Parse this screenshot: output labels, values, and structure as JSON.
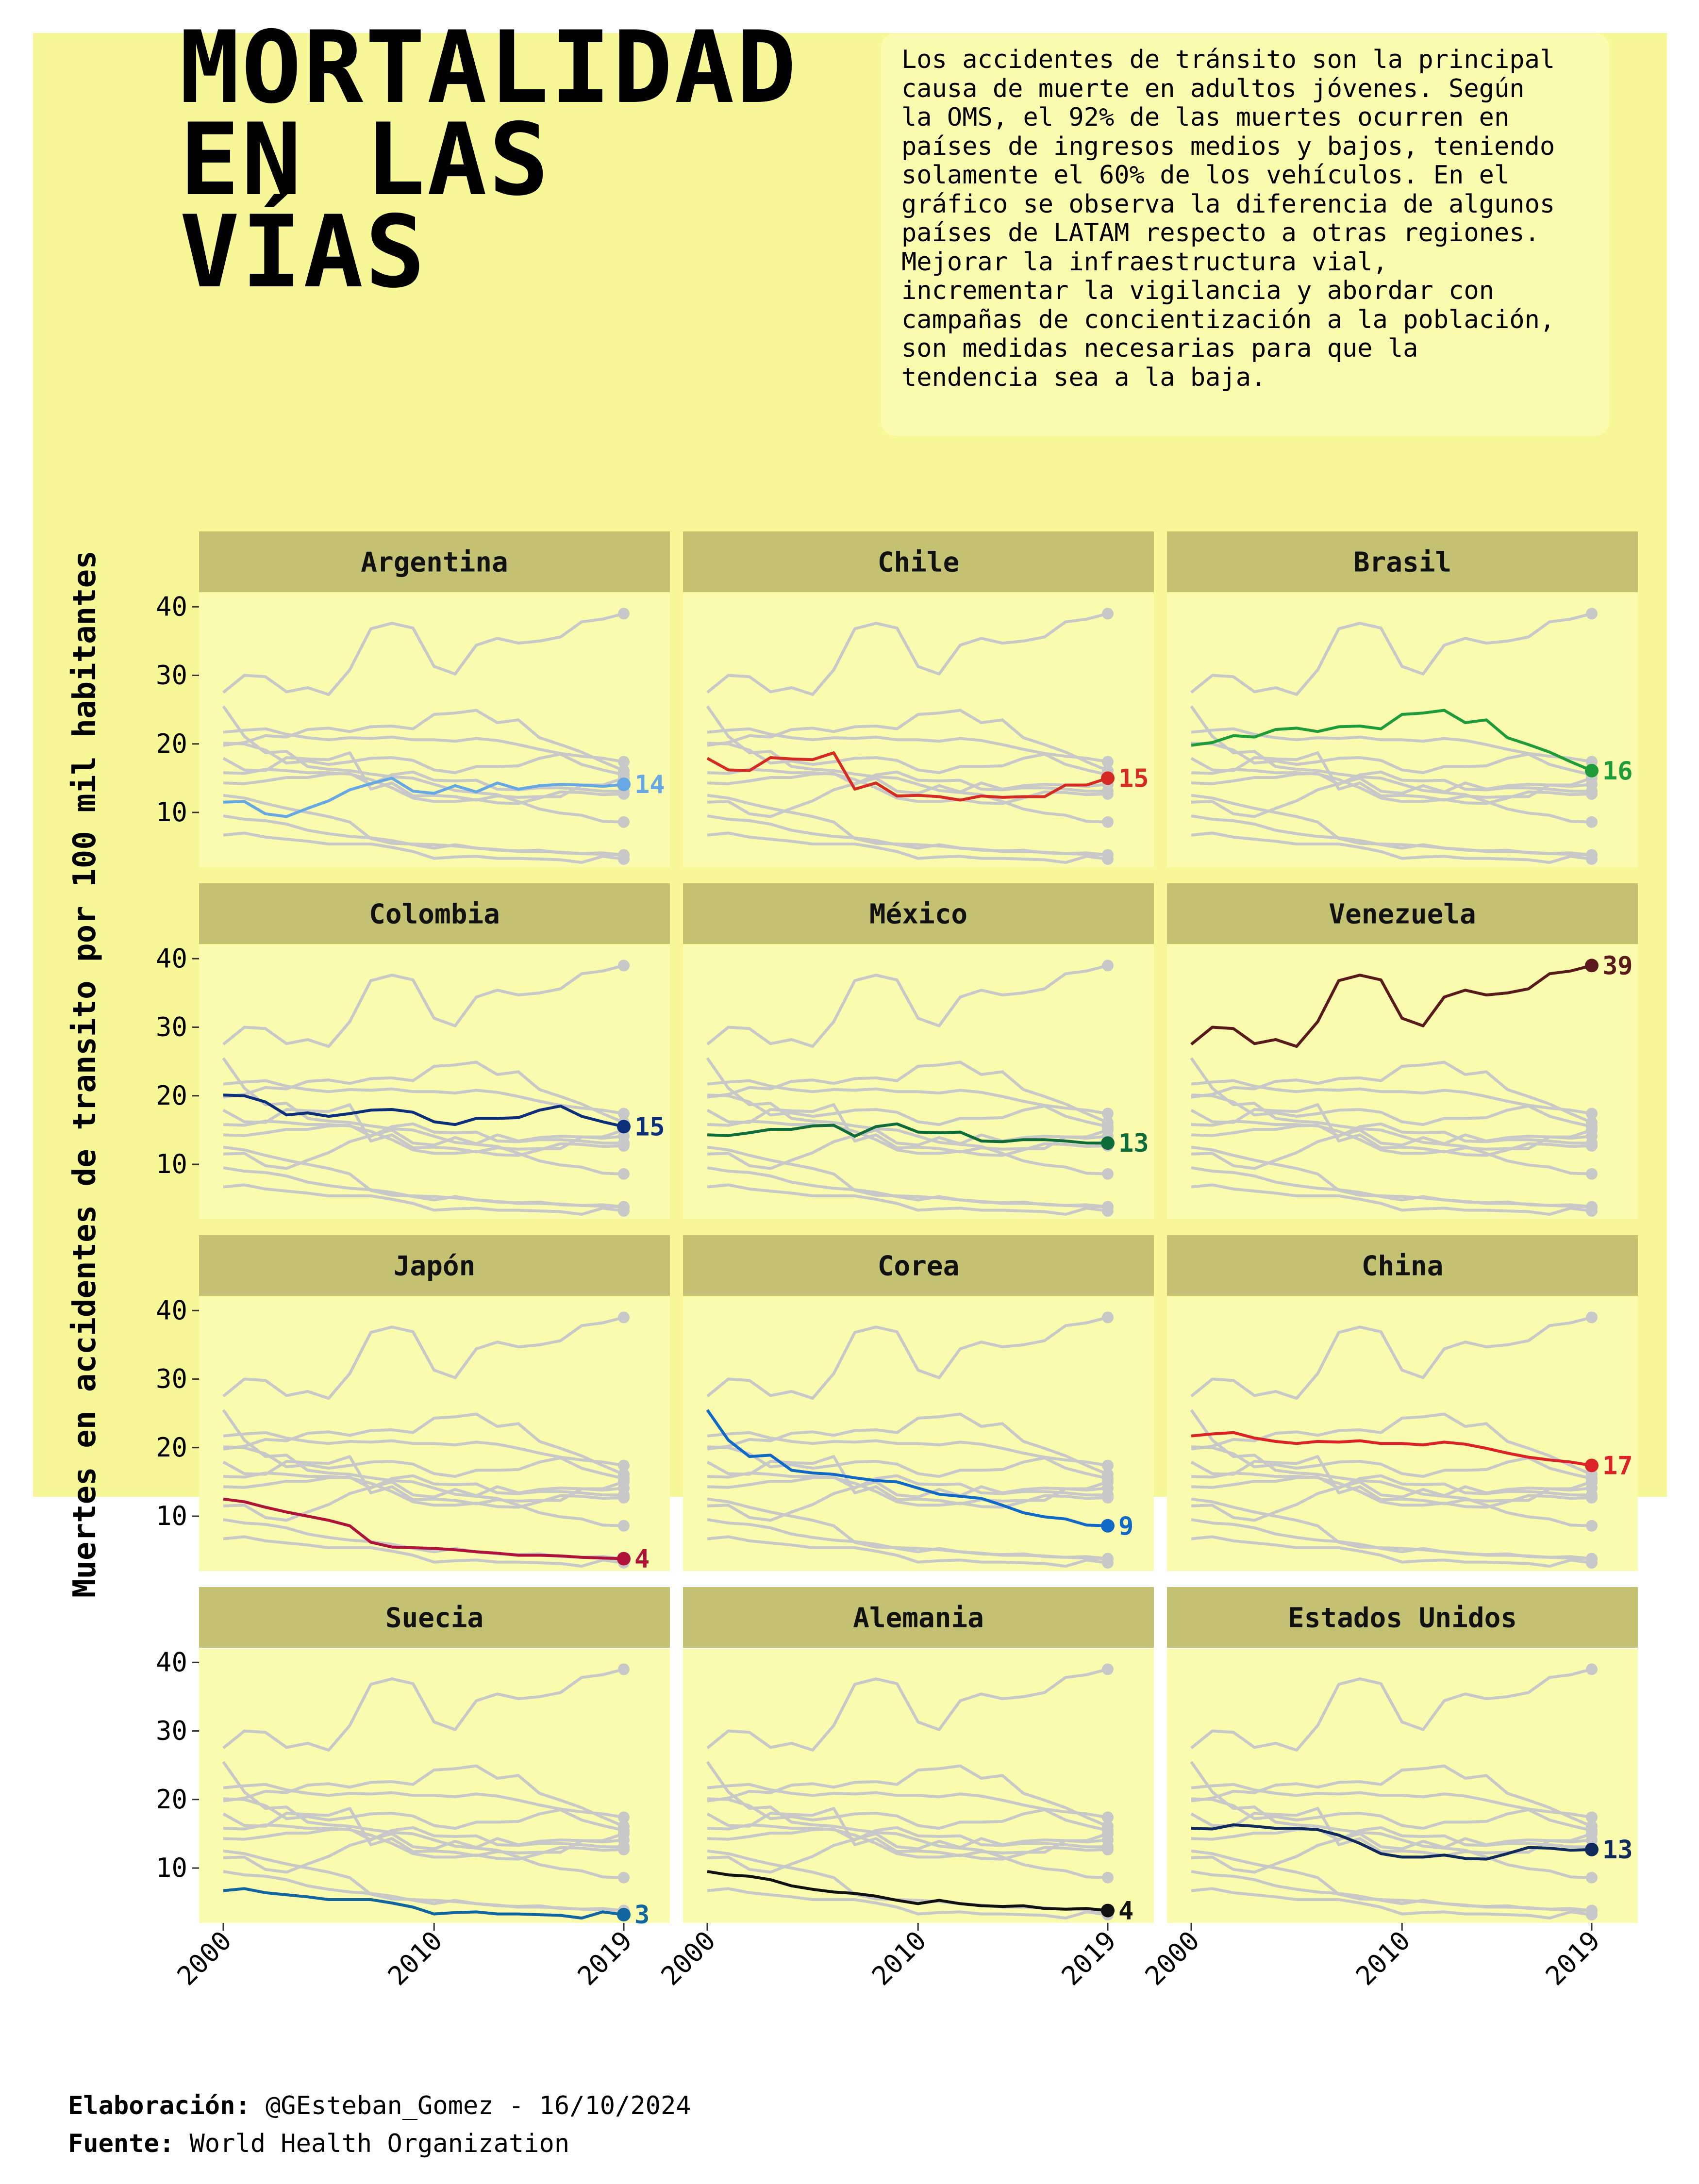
{
  "title_lines": [
    "MORTALIDAD",
    "EN LAS",
    "VÍAS"
  ],
  "description": "Los accidentes de tránsito son la principal\ncausa de muerte en adultos jóvenes. Según\nla OMS, el 92% de las muertes ocurren en\npaíses de ingresos medios y bajos, teniendo\nsolamente el 60% de los vehículos. En el\ngráfico se observa la diferencia de algunos\npaíses de LATAM respecto a otras regiones.\nMejorar la infraestructura vial,\nincrementar la vigilancia y abordar con\ncampañas de concientización a la población,\nson medidas necesarias para que la\ntendencia sea a la baja.",
  "footer": {
    "credit_label": "Elaboración:",
    "credit_value": " @GEsteban_Gomez - 16/10/2024",
    "source_label": "Fuente:",
    "source_value": " World Health Organization"
  },
  "colors": {
    "background": "#f7f797",
    "panel": "#fbfbb0",
    "strip": "#c4c272",
    "grey_lines": "#c8c8c8"
  },
  "chart_data": {
    "type": "line",
    "ylabel": "Muertes en accidentes de transito por 100 mil habitantes",
    "xlabel": "",
    "x": [
      2000,
      2001,
      2002,
      2003,
      2004,
      2005,
      2006,
      2007,
      2008,
      2009,
      2010,
      2011,
      2012,
      2013,
      2014,
      2015,
      2016,
      2017,
      2018,
      2019
    ],
    "x_ticks": [
      2000,
      2010,
      2019
    ],
    "y_ticks": [
      10,
      20,
      30,
      40
    ],
    "ylim": [
      2,
      42
    ],
    "layout": "facets 4x3, each panel highlights one country over the others in grey",
    "series": [
      {
        "name": "Argentina",
        "color": "#66a8e3",
        "end_label": "14",
        "values": [
          11.5,
          11.6,
          9.8,
          9.4,
          10.6,
          11.7,
          13.3,
          14.2,
          15.0,
          13.1,
          12.8,
          13.9,
          13.0,
          14.3,
          13.4,
          13.9,
          14.1,
          14.0,
          13.8,
          14.1
        ]
      },
      {
        "name": "Chile",
        "color": "#d62a24",
        "end_label": "15",
        "values": [
          17.9,
          16.2,
          16.1,
          18.0,
          17.8,
          17.7,
          18.7,
          13.4,
          14.3,
          12.4,
          12.5,
          12.3,
          11.8,
          12.4,
          12.2,
          12.3,
          12.3,
          14.0,
          14.0,
          15.0
        ]
      },
      {
        "name": "Brasil",
        "color": "#1e9c3a",
        "end_label": "16",
        "values": [
          19.8,
          20.2,
          21.2,
          21.0,
          22.1,
          22.3,
          21.8,
          22.5,
          22.6,
          22.2,
          24.3,
          24.5,
          24.9,
          23.1,
          23.5,
          20.9,
          19.9,
          18.8,
          17.4,
          16.1
        ]
      },
      {
        "name": "Colombia",
        "color": "#0b2f7a",
        "end_label": "15",
        "values": [
          20.1,
          20.0,
          19.1,
          17.2,
          17.5,
          17.0,
          17.4,
          17.9,
          18.0,
          17.6,
          16.2,
          15.8,
          16.7,
          16.7,
          16.8,
          17.9,
          18.5,
          17.0,
          16.2,
          15.5
        ]
      },
      {
        "name": "México",
        "color": "#0e6b3a",
        "end_label": "13",
        "values": [
          14.3,
          14.2,
          14.6,
          15.1,
          15.1,
          15.6,
          15.7,
          14.1,
          15.5,
          15.9,
          14.7,
          14.6,
          14.7,
          13.4,
          13.3,
          13.6,
          13.6,
          13.4,
          13.1,
          13.1
        ]
      },
      {
        "name": "Venezuela",
        "color": "#5a1a1c",
        "end_label": "39",
        "values": [
          27.5,
          30.0,
          29.8,
          27.6,
          28.2,
          27.2,
          30.8,
          36.8,
          37.6,
          36.9,
          31.3,
          30.2,
          34.4,
          35.4,
          34.7,
          35.0,
          35.6,
          37.8,
          38.2,
          39.0
        ]
      },
      {
        "name": "Japón",
        "color": "#b0133a",
        "end_label": "4",
        "values": [
          12.5,
          12.1,
          11.3,
          10.6,
          10.0,
          9.4,
          8.6,
          6.2,
          5.5,
          5.4,
          5.3,
          5.1,
          4.8,
          4.6,
          4.3,
          4.3,
          4.2,
          4.0,
          3.9,
          3.8
        ]
      },
      {
        "name": "Corea",
        "color": "#1068c7",
        "end_label": "9",
        "values": [
          25.5,
          21.1,
          18.7,
          18.9,
          16.7,
          16.3,
          16.1,
          15.6,
          15.2,
          15.0,
          14.1,
          13.2,
          12.9,
          12.6,
          11.6,
          10.5,
          9.9,
          9.6,
          8.7,
          8.6
        ]
      },
      {
        "name": "China",
        "color": "#dc2227",
        "end_label": "17",
        "values": [
          21.7,
          22.0,
          22.2,
          21.4,
          20.9,
          20.6,
          20.9,
          20.8,
          21.0,
          20.6,
          20.6,
          20.4,
          20.8,
          20.5,
          19.9,
          19.2,
          18.6,
          18.2,
          17.9,
          17.4
        ]
      },
      {
        "name": "Suecia",
        "color": "#10669e",
        "end_label": "3",
        "values": [
          6.7,
          7.0,
          6.4,
          6.1,
          5.8,
          5.4,
          5.4,
          5.4,
          4.9,
          4.3,
          3.3,
          3.5,
          3.6,
          3.3,
          3.3,
          3.2,
          3.1,
          2.7,
          3.6,
          3.2
        ]
      },
      {
        "name": "Alemania",
        "color": "#111111",
        "end_label": "4",
        "values": [
          9.5,
          9.0,
          8.8,
          8.3,
          7.4,
          6.9,
          6.5,
          6.3,
          5.9,
          5.3,
          4.8,
          5.3,
          4.8,
          4.5,
          4.4,
          4.5,
          4.1,
          4.0,
          4.1,
          3.8
        ]
      },
      {
        "name": "Estados Unidos",
        "color": "#102a5c",
        "end_label": "13",
        "values": [
          15.8,
          15.7,
          16.3,
          16.1,
          15.8,
          15.8,
          15.6,
          14.8,
          13.6,
          12.1,
          11.6,
          11.6,
          11.9,
          11.4,
          11.3,
          12.1,
          13.0,
          12.9,
          12.6,
          12.7
        ]
      }
    ]
  }
}
